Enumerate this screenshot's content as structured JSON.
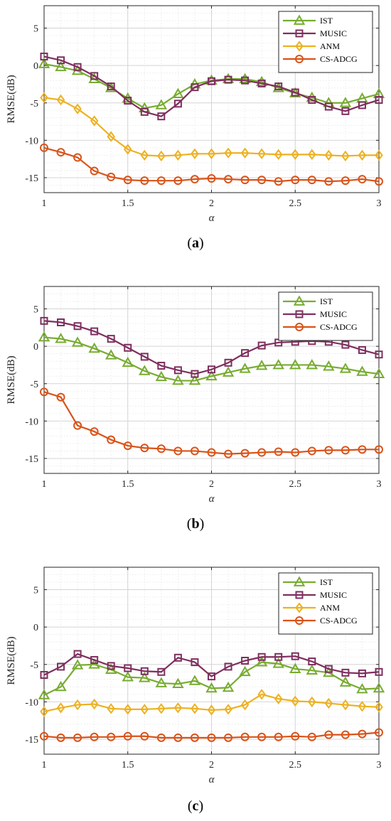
{
  "colors": {
    "IST": "#77AC30",
    "MUSIC": "#7E2F5E",
    "ANM": "#EDB120",
    "CS-ADCG": "#D95319",
    "grid": "#DCDCDC",
    "axis": "#262626"
  },
  "chart_data": [
    {
      "type": "line",
      "caption": "(a)",
      "xlabel": "α",
      "ylabel": "RMSE(dB)",
      "xlim": [
        1,
        3
      ],
      "ylim": [
        -17,
        8
      ],
      "xticks": [
        "1",
        "1.5",
        "2",
        "2.5",
        "3"
      ],
      "yticks": [
        "5",
        "0",
        "-5",
        "-10",
        "-15"
      ],
      "grid": true,
      "legend_position": "top-right",
      "x": [
        1,
        1.1,
        1.2,
        1.3,
        1.4,
        1.5,
        1.6,
        1.7,
        1.8,
        1.9,
        2,
        2.1,
        2.2,
        2.3,
        2.4,
        2.5,
        2.6,
        2.7,
        2.8,
        2.9,
        3
      ],
      "series": [
        {
          "name": "IST",
          "marker": "triangle",
          "values": [
            0.2,
            -0.2,
            -0.7,
            -1.8,
            -3.0,
            -4.4,
            -5.7,
            -5.3,
            -3.8,
            -2.5,
            -2.0,
            -1.8,
            -1.8,
            -2.2,
            -3.0,
            -3.7,
            -4.3,
            -5.0,
            -5.0,
            -4.4,
            -3.8
          ]
        },
        {
          "name": "MUSIC",
          "marker": "square",
          "values": [
            1.2,
            0.7,
            -0.2,
            -1.4,
            -2.8,
            -4.7,
            -6.2,
            -6.8,
            -5.1,
            -2.9,
            -2.1,
            -1.9,
            -2.0,
            -2.4,
            -2.8,
            -3.6,
            -4.6,
            -5.5,
            -6.1,
            -5.3,
            -4.6
          ]
        },
        {
          "name": "ANM",
          "marker": "diamond",
          "values": [
            -4.3,
            -4.6,
            -5.8,
            -7.4,
            -9.5,
            -11.2,
            -12.0,
            -12.1,
            -12.0,
            -11.8,
            -11.8,
            -11.7,
            -11.7,
            -11.8,
            -11.9,
            -11.9,
            -11.9,
            -12.0,
            -12.1,
            -12.0,
            -12.0
          ]
        },
        {
          "name": "CS-ADCG",
          "marker": "circle",
          "values": [
            -11.0,
            -11.6,
            -12.3,
            -14.1,
            -14.9,
            -15.3,
            -15.4,
            -15.4,
            -15.4,
            -15.2,
            -15.1,
            -15.2,
            -15.3,
            -15.3,
            -15.5,
            -15.3,
            -15.3,
            -15.5,
            -15.4,
            -15.2,
            -15.5
          ]
        }
      ]
    },
    {
      "type": "line",
      "caption": "(b)",
      "xlabel": "α",
      "ylabel": "RMSE(dB)",
      "xlim": [
        1,
        3
      ],
      "ylim": [
        -17,
        8
      ],
      "xticks": [
        "1",
        "1.5",
        "2",
        "2.5",
        "3"
      ],
      "yticks": [
        "5",
        "0",
        "-5",
        "-10",
        "-15"
      ],
      "grid": true,
      "legend_position": "top-right",
      "x": [
        1,
        1.1,
        1.2,
        1.3,
        1.4,
        1.5,
        1.6,
        1.7,
        1.8,
        1.9,
        2,
        2.1,
        2.2,
        2.3,
        2.4,
        2.5,
        2.6,
        2.7,
        2.8,
        2.9,
        3
      ],
      "series": [
        {
          "name": "IST",
          "marker": "triangle",
          "values": [
            1.2,
            1.0,
            0.5,
            -0.3,
            -1.2,
            -2.2,
            -3.3,
            -4.1,
            -4.6,
            -4.6,
            -4.0,
            -3.5,
            -3.0,
            -2.6,
            -2.5,
            -2.5,
            -2.5,
            -2.7,
            -3.0,
            -3.4,
            -3.7
          ]
        },
        {
          "name": "MUSIC",
          "marker": "square",
          "values": [
            3.4,
            3.2,
            2.7,
            2.0,
            1.0,
            -0.2,
            -1.4,
            -2.6,
            -3.2,
            -3.7,
            -3.1,
            -2.2,
            -0.9,
            0.1,
            0.5,
            0.6,
            0.7,
            0.6,
            0.2,
            -0.5,
            -1.1
          ]
        },
        {
          "name": "CS-ADCG",
          "marker": "circle",
          "values": [
            -6.1,
            -6.8,
            -10.6,
            -11.4,
            -12.5,
            -13.3,
            -13.6,
            -13.7,
            -14.0,
            -14.0,
            -14.2,
            -14.4,
            -14.3,
            -14.2,
            -14.1,
            -14.2,
            -14.0,
            -13.9,
            -13.9,
            -13.8,
            -13.8
          ]
        }
      ]
    },
    {
      "type": "line",
      "caption": "(c)",
      "xlabel": "α",
      "ylabel": "RMSE(dB)",
      "xlim": [
        1,
        3
      ],
      "ylim": [
        -17,
        8
      ],
      "xticks": [
        "1",
        "1.5",
        "2",
        "2.5",
        "3"
      ],
      "yticks": [
        "5",
        "0",
        "-5",
        "-10",
        "-15"
      ],
      "grid": true,
      "legend_position": "top-right",
      "x": [
        1,
        1.1,
        1.2,
        1.3,
        1.4,
        1.5,
        1.6,
        1.7,
        1.8,
        1.9,
        2,
        2.1,
        2.2,
        2.3,
        2.4,
        2.5,
        2.6,
        2.7,
        2.8,
        2.9,
        3
      ],
      "series": [
        {
          "name": "IST",
          "marker": "triangle",
          "values": [
            -9.1,
            -8.0,
            -5.1,
            -5.0,
            -5.7,
            -6.7,
            -6.8,
            -7.5,
            -7.6,
            -7.2,
            -8.2,
            -8.1,
            -6.0,
            -4.7,
            -4.9,
            -5.6,
            -5.8,
            -6.1,
            -7.4,
            -8.3,
            -8.2
          ]
        },
        {
          "name": "MUSIC",
          "marker": "square",
          "values": [
            -6.4,
            -5.3,
            -3.6,
            -4.4,
            -5.2,
            -5.5,
            -5.9,
            -6.0,
            -4.1,
            -4.7,
            -6.6,
            -5.3,
            -4.5,
            -4.0,
            -4.0,
            -3.9,
            -4.6,
            -5.6,
            -6.1,
            -6.2,
            -6.0
          ]
        },
        {
          "name": "ANM",
          "marker": "diamond",
          "values": [
            -11.3,
            -10.8,
            -10.4,
            -10.3,
            -10.9,
            -11.0,
            -11.0,
            -10.9,
            -10.8,
            -10.9,
            -11.1,
            -11.0,
            -10.4,
            -9.0,
            -9.6,
            -9.9,
            -10.0,
            -10.2,
            -10.4,
            -10.6,
            -10.7
          ]
        },
        {
          "name": "CS-ADCG",
          "marker": "circle",
          "values": [
            -14.6,
            -14.8,
            -14.8,
            -14.7,
            -14.7,
            -14.6,
            -14.6,
            -14.8,
            -14.8,
            -14.8,
            -14.8,
            -14.8,
            -14.7,
            -14.7,
            -14.7,
            -14.6,
            -14.7,
            -14.4,
            -14.4,
            -14.3,
            -14.1
          ]
        }
      ]
    }
  ]
}
